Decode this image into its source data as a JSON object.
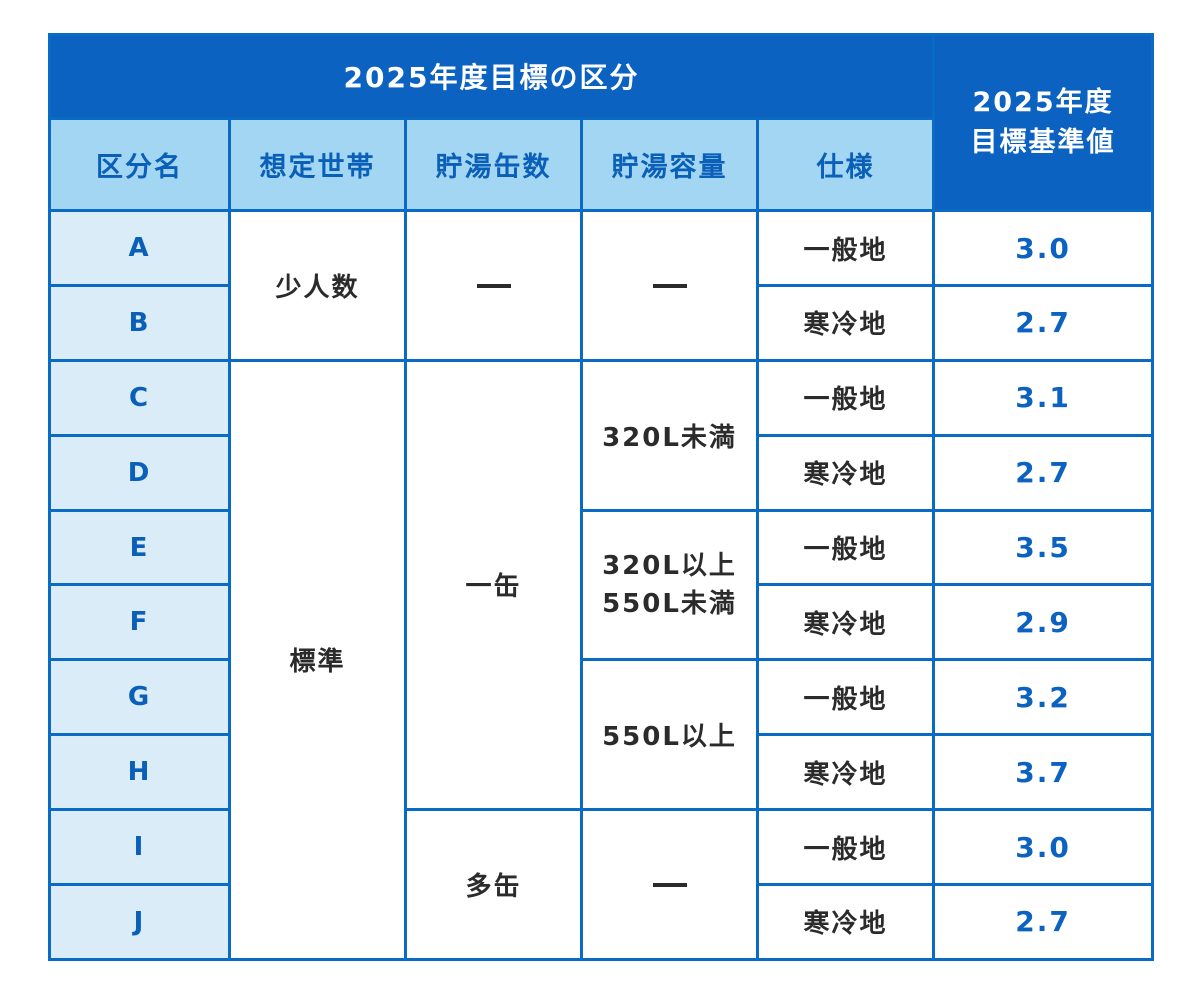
{
  "header": {
    "group_title": "2025年度目標の区分",
    "target_title_line1": "2025年度",
    "target_title_line2": "目標基準値",
    "columns": [
      "区分名",
      "想定世帯",
      "貯湯缶数",
      "貯湯容量",
      "仕様"
    ]
  },
  "households": {
    "small": "少人数",
    "standard": "標準"
  },
  "tanks": {
    "one": "一缶",
    "multi": "多缶"
  },
  "capacities": {
    "under320": "320L未満",
    "mid_line1": "320L以上",
    "mid_line2": "550L未満",
    "over550": "550L以上"
  },
  "rows": [
    {
      "code": "A",
      "spec": "一般地",
      "value": "3.0"
    },
    {
      "code": "B",
      "spec": "寒冷地",
      "value": "2.7"
    },
    {
      "code": "C",
      "spec": "一般地",
      "value": "3.1"
    },
    {
      "code": "D",
      "spec": "寒冷地",
      "value": "2.7"
    },
    {
      "code": "E",
      "spec": "一般地",
      "value": "3.5"
    },
    {
      "code": "F",
      "spec": "寒冷地",
      "value": "2.9"
    },
    {
      "code": "G",
      "spec": "一般地",
      "value": "3.2"
    },
    {
      "code": "H",
      "spec": "寒冷地",
      "value": "3.7"
    },
    {
      "code": "I",
      "spec": "一般地",
      "value": "3.0"
    },
    {
      "code": "J",
      "spec": "寒冷地",
      "value": "2.7"
    }
  ]
}
